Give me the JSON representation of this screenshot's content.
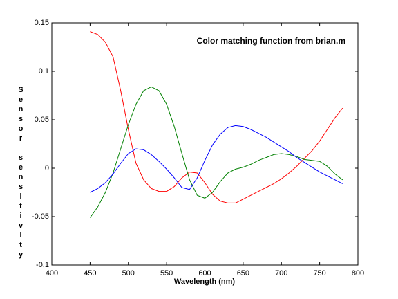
{
  "chart_data": {
    "type": "line",
    "title": "Color matching function from brian.m",
    "x_label": "Wavelength (nm)",
    "y_label": "Sensor sensitivity",
    "x": [
      450,
      460,
      470,
      480,
      490,
      500,
      510,
      520,
      530,
      540,
      550,
      560,
      570,
      580,
      590,
      600,
      610,
      620,
      630,
      640,
      650,
      660,
      670,
      680,
      690,
      700,
      710,
      720,
      730,
      740,
      750,
      760,
      770,
      780
    ],
    "series": [
      {
        "color": "#ff0000",
        "values": [
          0.141,
          0.138,
          0.13,
          0.115,
          0.08,
          0.04,
          0.005,
          -0.012,
          -0.021,
          -0.024,
          -0.024,
          -0.019,
          -0.01,
          -0.004,
          -0.005,
          -0.015,
          -0.027,
          -0.034,
          -0.036,
          -0.036,
          -0.032,
          -0.028,
          -0.024,
          -0.02,
          -0.016,
          -0.011,
          -0.005,
          0.002,
          0.01,
          0.018,
          0.028,
          0.04,
          0.052,
          0.062
        ]
      },
      {
        "color": "#008000",
        "values": [
          -0.051,
          -0.04,
          -0.025,
          -0.005,
          0.02,
          0.045,
          0.066,
          0.08,
          0.084,
          0.08,
          0.066,
          0.043,
          0.015,
          -0.012,
          -0.028,
          -0.031,
          -0.025,
          -0.014,
          -0.005,
          -0.001,
          0.001,
          0.004,
          0.008,
          0.011,
          0.014,
          0.015,
          0.014,
          0.012,
          0.009,
          0.008,
          0.007,
          0.002,
          -0.006,
          -0.012
        ]
      },
      {
        "color": "#0000ff",
        "values": [
          -0.025,
          -0.021,
          -0.015,
          -0.006,
          0.005,
          0.015,
          0.02,
          0.019,
          0.014,
          0.007,
          -0.001,
          -0.01,
          -0.02,
          -0.022,
          -0.01,
          0.008,
          0.024,
          0.035,
          0.042,
          0.044,
          0.043,
          0.04,
          0.036,
          0.032,
          0.027,
          0.022,
          0.017,
          0.011,
          0.006,
          0.001,
          -0.004,
          -0.008,
          -0.012,
          -0.016
        ]
      }
    ],
    "xlim": [
      400,
      800
    ],
    "xticks": [
      400,
      450,
      500,
      550,
      600,
      650,
      700,
      750,
      800
    ],
    "ylim": [
      -0.1,
      0.15
    ],
    "yticks": [
      -0.1,
      -0.05,
      0,
      0.05,
      0.1,
      0.15
    ],
    "grid": false
  }
}
